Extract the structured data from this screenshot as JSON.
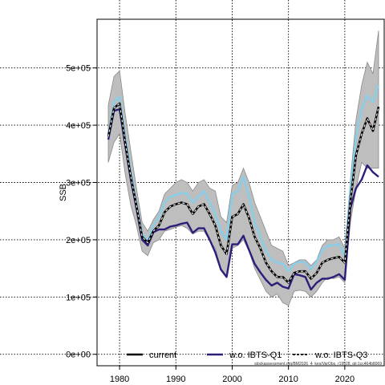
{
  "chart_data": {
    "type": "line",
    "xlabel": "",
    "ylabel": "SSB",
    "xlim": [
      1976,
      2027
    ],
    "ylim": [
      -20000,
      585000
    ],
    "x_ticks": [
      1980,
      1990,
      2000,
      2010,
      2020
    ],
    "y_ticks": [
      0,
      100000,
      200000,
      300000,
      400000,
      500000
    ],
    "y_tick_labels": [
      "0e+00",
      "1e+05",
      "2e+05",
      "3e+05",
      "4e+05",
      "5e+05"
    ],
    "grid": true,
    "legend_position": "bottom",
    "footnote": "stockassessment.org/BM2026_4_kes/VarObs, r19528, git:1cc464b8069",
    "colors": {
      "current": "#000000",
      "ci_band": "#bebebe",
      "w.o. IBTS-Q1": "#2e1e7a",
      "w.o. IBTS-Q3": "#87ceeb"
    },
    "years": [
      1978,
      1979,
      1980,
      1981,
      1982,
      1983,
      1984,
      1985,
      1986,
      1987,
      1988,
      1989,
      1990,
      1991,
      1992,
      1993,
      1994,
      1995,
      1996,
      1997,
      1998,
      1999,
      2000,
      2001,
      2002,
      2003,
      2004,
      2005,
      2006,
      2007,
      2008,
      2009,
      2010,
      2011,
      2012,
      2013,
      2014,
      2015,
      2016,
      2017,
      2018,
      2019,
      2020,
      2021,
      2022,
      2023,
      2024,
      2025,
      2026
    ],
    "ci_upper": [
      435000,
      485000,
      495000,
      420000,
      355000,
      290000,
      230000,
      215000,
      235000,
      250000,
      280000,
      290000,
      300000,
      305000,
      300000,
      285000,
      300000,
      305000,
      290000,
      285000,
      240000,
      230000,
      295000,
      300000,
      325000,
      300000,
      265000,
      240000,
      215000,
      190000,
      185000,
      180000,
      155000,
      160000,
      165000,
      165000,
      155000,
      165000,
      190000,
      200000,
      200000,
      205000,
      185000,
      305000,
      410000,
      470000,
      510000,
      490000,
      565000
    ],
    "ci_lower": [
      335000,
      370000,
      385000,
      315000,
      260000,
      225000,
      180000,
      172000,
      195000,
      200000,
      215000,
      218000,
      222000,
      225000,
      220000,
      210000,
      215000,
      215000,
      198000,
      185000,
      150000,
      135000,
      185000,
      190000,
      200000,
      180000,
      150000,
      130000,
      110000,
      100000,
      105000,
      90000,
      85000,
      110000,
      112000,
      110000,
      100000,
      110000,
      125000,
      135000,
      132000,
      135000,
      125000,
      230000,
      290000,
      335000,
      325000,
      325000,
      325000
    ],
    "series": [
      {
        "name": "current",
        "style": "solid-with-dashes",
        "values": [
          380000,
          430000,
          438000,
          370000,
          310000,
          260000,
          205000,
          195000,
          215000,
          225000,
          248000,
          258000,
          262000,
          265000,
          262000,
          245000,
          258000,
          262000,
          245000,
          225000,
          190000,
          175000,
          240000,
          245000,
          262000,
          238000,
          205000,
          185000,
          160000,
          145000,
          135000,
          135000,
          125000,
          142000,
          145000,
          145000,
          132000,
          142000,
          160000,
          165000,
          168000,
          170000,
          160000,
          268000,
          348000,
          385000,
          412000,
          390000,
          432000
        ]
      },
      {
        "name": "w.o. IBTS-Q1",
        "style": "solid",
        "values": [
          375000,
          425000,
          428000,
          365000,
          305000,
          255000,
          200000,
          190000,
          213000,
          218000,
          218000,
          223000,
          225000,
          228000,
          230000,
          212000,
          220000,
          220000,
          200000,
          178000,
          148000,
          135000,
          192000,
          192000,
          207000,
          182000,
          158000,
          143000,
          130000,
          120000,
          125000,
          118000,
          115000,
          140000,
          138000,
          135000,
          113000,
          125000,
          132000,
          132000,
          135000,
          140000,
          130000,
          255000,
          290000,
          305000,
          330000,
          318000,
          310000
        ]
      },
      {
        "name": "w.o. IBTS-Q3",
        "style": "solid",
        "values": [
          385000,
          440000,
          450000,
          380000,
          320000,
          265000,
          210000,
          198000,
          225000,
          240000,
          265000,
          275000,
          278000,
          282000,
          280000,
          265000,
          275000,
          285000,
          265000,
          245000,
          215000,
          200000,
          280000,
          285000,
          310000,
          275000,
          230000,
          205000,
          180000,
          165000,
          160000,
          158000,
          145000,
          158000,
          162000,
          160000,
          148000,
          162000,
          182000,
          190000,
          190000,
          193000,
          170000,
          290000,
          380000,
          428000,
          452000,
          440000,
          470000
        ]
      }
    ]
  },
  "legend": {
    "items": [
      {
        "label": "current"
      },
      {
        "label": "w.o. IBTS-Q1"
      },
      {
        "label": "w.o. IBTS-Q3"
      }
    ]
  }
}
